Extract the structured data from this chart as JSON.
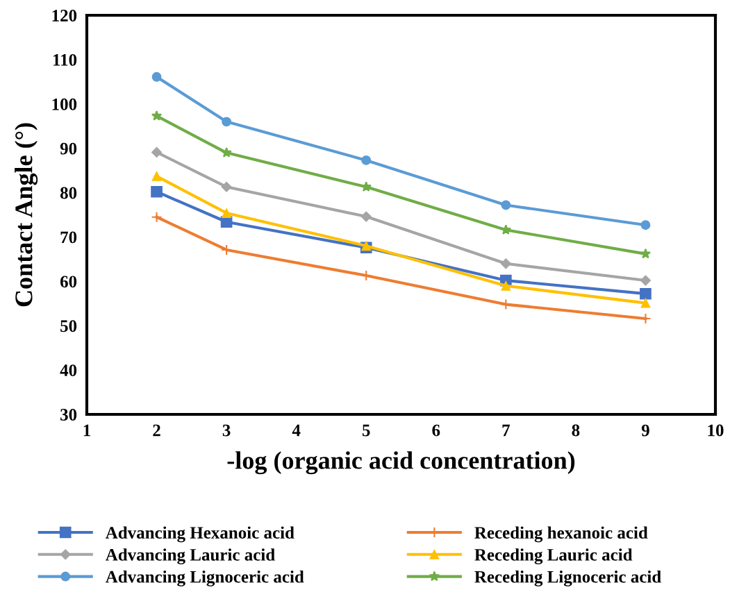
{
  "chart_data": {
    "type": "line",
    "xlabel": "-log (organic acid concentration)",
    "ylabel": "Contact Angle (°)",
    "x": [
      2,
      3,
      5,
      7,
      9
    ],
    "xlim": [
      1,
      10
    ],
    "xticks": [
      1,
      2,
      3,
      4,
      5,
      6,
      7,
      8,
      9,
      10
    ],
    "ylim": [
      30,
      120
    ],
    "yticks": [
      30,
      40,
      50,
      60,
      70,
      80,
      90,
      100,
      110,
      120
    ],
    "grid": false,
    "legend": "bottom",
    "line_style": "solid",
    "series": [
      {
        "name": "Advancing Hexanoic acid",
        "color": "#4472c4",
        "marker": "square",
        "values": [
          80.2,
          73.4,
          67.6,
          60.2,
          57.2
        ]
      },
      {
        "name": "Receding hexanoic acid",
        "color": "#ed7d31",
        "marker": "cross",
        "values": [
          74.5,
          67.1,
          61.3,
          54.8,
          51.6
        ]
      },
      {
        "name": "Advancing Lauric acid",
        "color": "#a5a5a5",
        "marker": "diamond",
        "values": [
          89.1,
          81.3,
          74.6,
          64.0,
          60.2
        ]
      },
      {
        "name": "Receding Lauric acid",
        "color": "#ffc000",
        "marker": "triangle",
        "values": [
          83.7,
          75.4,
          68.0,
          59.0,
          55.1
        ]
      },
      {
        "name": "Advancing Lignoceric acid",
        "color": "#5b9bd5",
        "marker": "circle",
        "values": [
          106.1,
          96.0,
          87.3,
          77.2,
          72.7
        ]
      },
      {
        "name": "Receding Lignoceric acid",
        "color": "#70ad47",
        "marker": "star",
        "values": [
          97.3,
          89.0,
          81.3,
          71.6,
          66.2
        ]
      }
    ]
  }
}
